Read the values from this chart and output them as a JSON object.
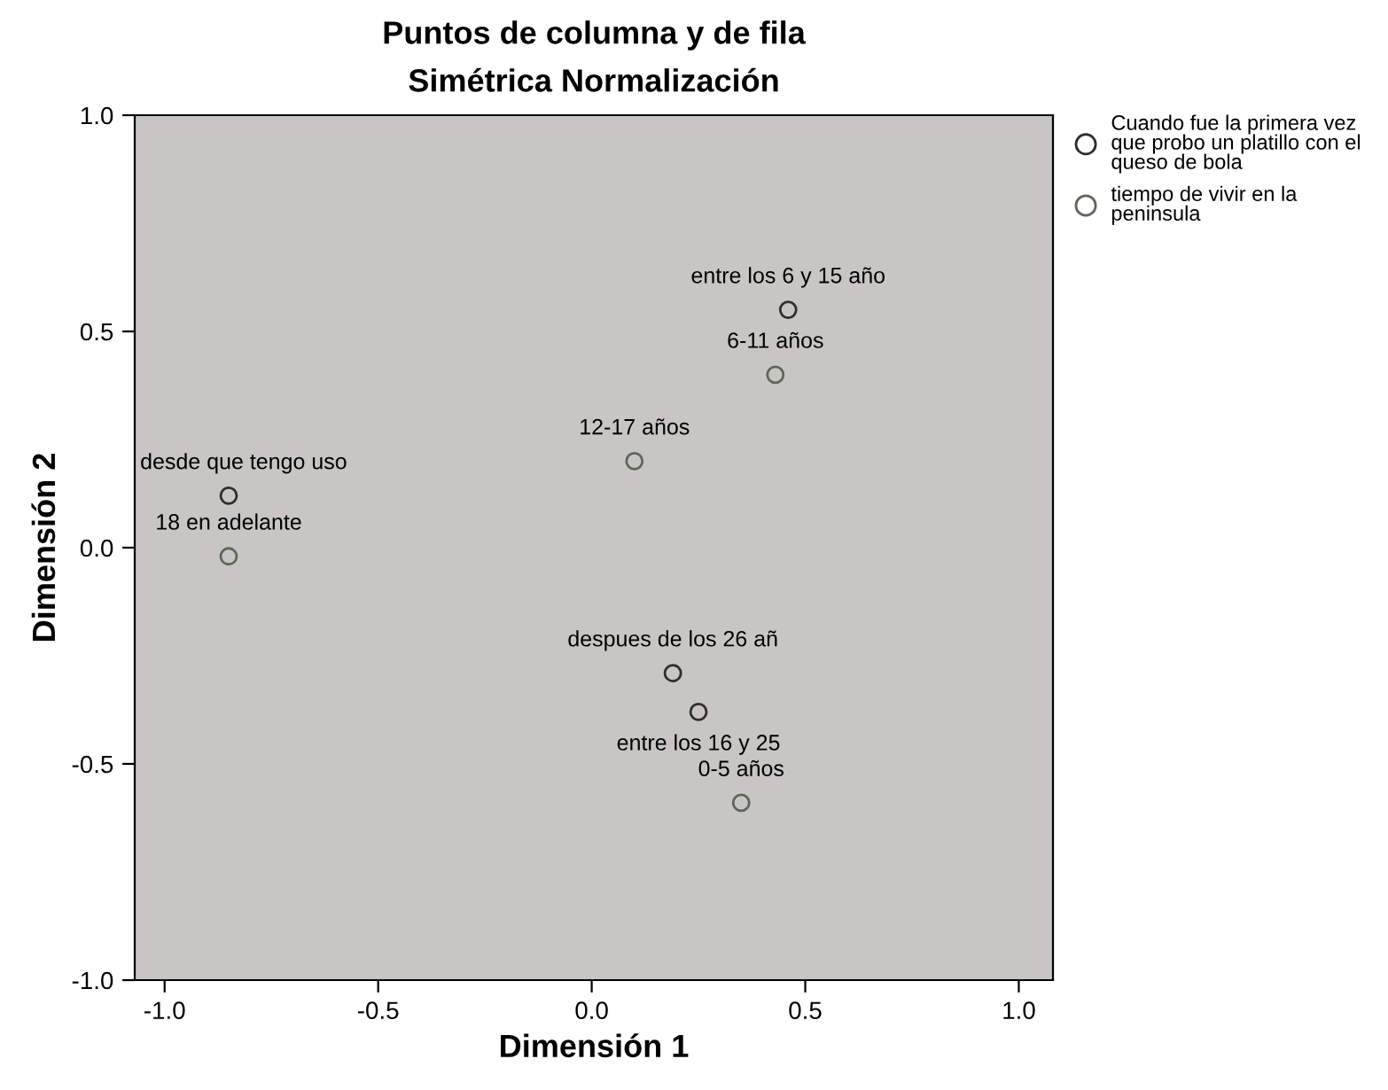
{
  "chart_data": {
    "type": "scatter",
    "title": "Puntos de columna y de fila",
    "subtitle": "Simétrica Normalización",
    "xlabel": "Dimensión 1",
    "ylabel": "Dimensión 2",
    "xlim": [
      -1.07,
      1.08
    ],
    "ylim": [
      -1.0,
      1.0
    ],
    "xticks": [
      {
        "value": -1.0,
        "label": "-1.0"
      },
      {
        "value": -0.5,
        "label": "-0.5"
      },
      {
        "value": 0.0,
        "label": "0.0"
      },
      {
        "value": 0.5,
        "label": "0.5"
      },
      {
        "value": 1.0,
        "label": "1.0"
      }
    ],
    "yticks": [
      {
        "value": -1.0,
        "label": "-1.0"
      },
      {
        "value": -0.5,
        "label": "-0.5"
      },
      {
        "value": 0.0,
        "label": "0.0"
      },
      {
        "value": 0.5,
        "label": "0.5"
      },
      {
        "value": 1.0,
        "label": "1.0"
      }
    ],
    "marker": "circle",
    "grid": false,
    "legend": "top right",
    "series": [
      {
        "name": "Cuando fue la primera vez que probo un platillo con el queso de bola",
        "color": "#2e2e2e",
        "x": [
          0.46,
          -0.85,
          0.19,
          0.25
        ],
        "values": [
          0.55,
          0.12,
          -0.29,
          -0.38
        ]
      },
      {
        "name": "tiempo de vivir en la peninsula",
        "color": "#5e6658",
        "x": [
          0.43,
          0.1,
          -0.85,
          0.35
        ],
        "values": [
          0.4,
          0.2,
          -0.02,
          -0.59
        ]
      }
    ],
    "annotations": [
      {
        "text": "entre los 6 y 15 año",
        "x": 0.46,
        "y": 0.55
      },
      {
        "text": "6-11 años",
        "x": 0.43,
        "y": 0.4
      },
      {
        "text": "12-17 años",
        "x": 0.1,
        "y": 0.2
      },
      {
        "text": "desde que tengo uso",
        "x": -0.85,
        "y": 0.12
      },
      {
        "text": "18 en adelante",
        "x": -0.85,
        "y": -0.02
      },
      {
        "text": "despues de los 26 añ",
        "x": 0.19,
        "y": -0.29
      },
      {
        "text": "entre los 16 y 25",
        "x": 0.25,
        "y": -0.38
      },
      {
        "text": "0-5 años",
        "x": 0.35,
        "y": -0.59
      }
    ]
  }
}
